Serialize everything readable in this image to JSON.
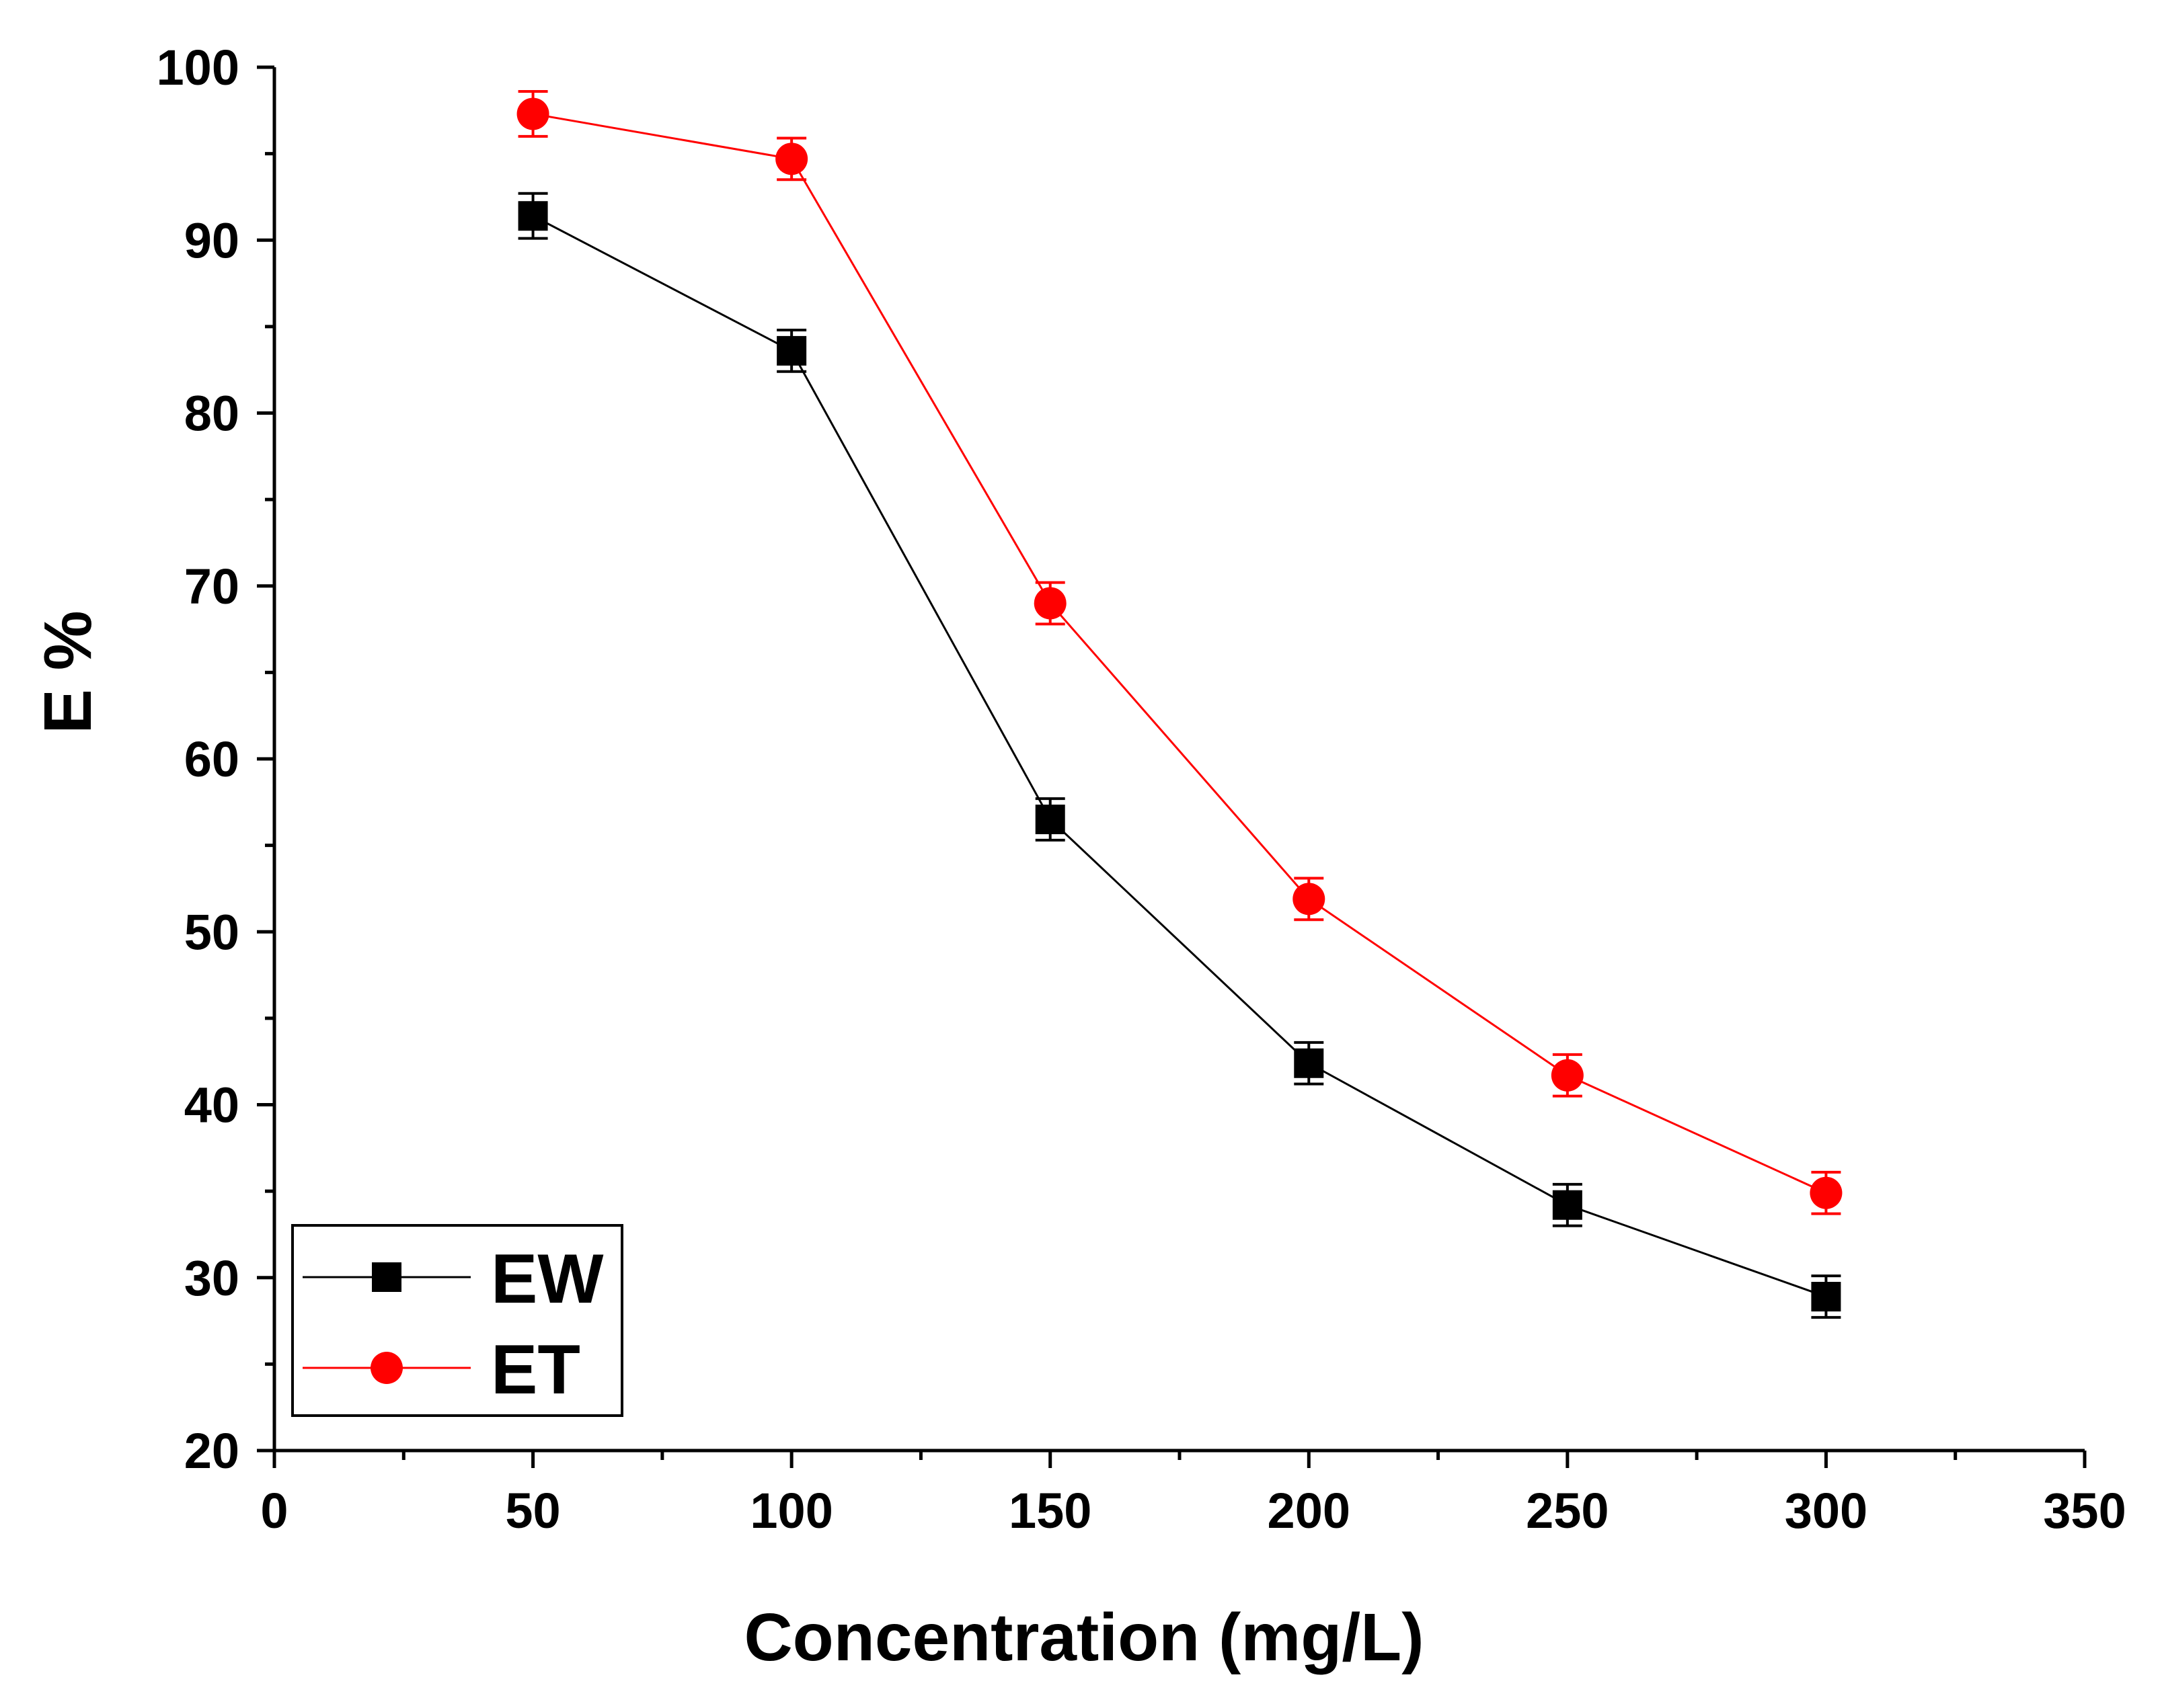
{
  "chart_data": {
    "type": "line",
    "title": "",
    "xlabel": "Concentration (mg/L)",
    "ylabel": "E %",
    "xlim": [
      0,
      350
    ],
    "ylim": [
      20,
      100
    ],
    "x_ticks": [
      "0",
      "50",
      "100",
      "150",
      "200",
      "250",
      "300",
      "350"
    ],
    "y_ticks": [
      "20",
      "30",
      "40",
      "50",
      "60",
      "70",
      "80",
      "90",
      "100"
    ],
    "x_tick_values": [
      0,
      50,
      100,
      150,
      200,
      250,
      300,
      350
    ],
    "y_tick_values": [
      20,
      30,
      40,
      50,
      60,
      70,
      80,
      90,
      100
    ],
    "x_minor_step": 25,
    "y_minor_step": 5,
    "grid": false,
    "legend_position": "bottom-left",
    "x": [
      50,
      100,
      150,
      200,
      250,
      300
    ],
    "series": [
      {
        "name": "EW",
        "color": "#000000",
        "marker": "square",
        "values": [
          91.4,
          83.6,
          56.5,
          42.4,
          34.2,
          28.9
        ],
        "error": [
          1.3,
          1.2,
          1.2,
          1.2,
          1.2,
          1.2
        ]
      },
      {
        "name": "ET",
        "color": "#ff0000",
        "marker": "circle",
        "values": [
          97.3,
          94.7,
          69.0,
          51.9,
          41.7,
          34.9
        ],
        "error": [
          1.3,
          1.2,
          1.2,
          1.2,
          1.2,
          1.2
        ]
      }
    ]
  }
}
